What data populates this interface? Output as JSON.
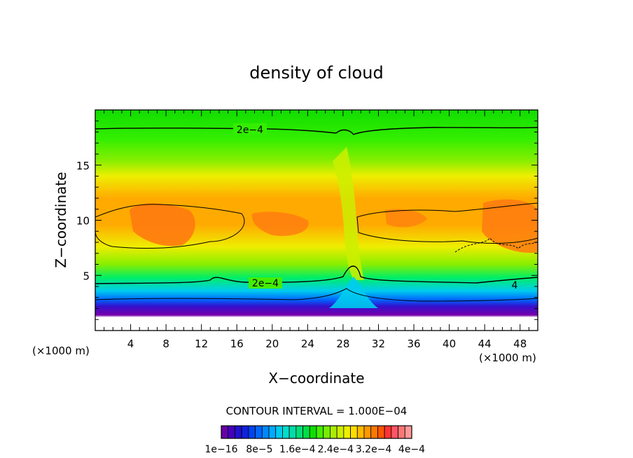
{
  "chart_data": {
    "type": "heatmap",
    "title": "density of cloud",
    "xlabel": "X−coordinate",
    "ylabel": "Z−coordinate",
    "x_unit_left": "(×1000 m)",
    "x_unit_right": "(×1000 m)",
    "xlim": [
      0,
      50
    ],
    "ylim": [
      0,
      20
    ],
    "x_ticks": [
      4,
      8,
      12,
      16,
      20,
      24,
      28,
      32,
      36,
      40,
      44,
      48
    ],
    "y_ticks": [
      5,
      10,
      15
    ],
    "contour_interval_text": "CONTOUR INTERVAL = 1.000E−04",
    "contour_labels": [
      {
        "text": "2e−4",
        "x": 17.3,
        "z": 18.1
      },
      {
        "text": "2e−4",
        "x": 19.3,
        "z": 4.4
      },
      {
        "text": "4",
        "x": 47.3,
        "z": 4.0
      }
    ],
    "colorbar_labels": [
      "1e−16",
      "8e−5",
      "1.6e−4",
      "2.4e−4",
      "3.2e−4",
      "4e−4"
    ],
    "colorbar_colors": [
      "#6600aa",
      "#4400bb",
      "#2211cc",
      "#1122dd",
      "#0044ee",
      "#0066ff",
      "#0088ff",
      "#00aaff",
      "#00ccee",
      "#00ddcc",
      "#00ddaa",
      "#00dd77",
      "#00dd44",
      "#11dd00",
      "#44ee00",
      "#77ee00",
      "#aaee00",
      "#ccee00",
      "#eeee00",
      "#ffdd00",
      "#ffbb00",
      "#ff9900",
      "#ff7700",
      "#ff5500",
      "#ff3333",
      "#ff5566",
      "#ff7777",
      "#ff9999"
    ],
    "colors": {
      "low": "#7700aa",
      "high": "#ff9999"
    }
  }
}
